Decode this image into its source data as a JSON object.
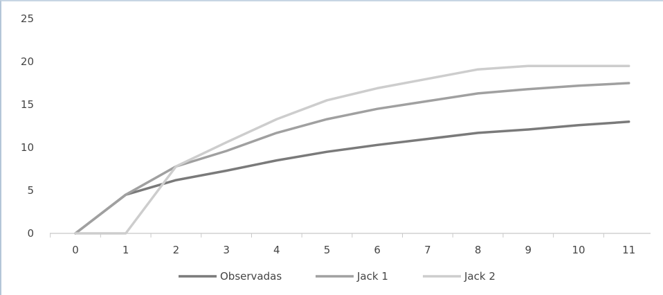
{
  "chart_data": {
    "type": "line",
    "title": "",
    "xlabel": "",
    "ylabel": "",
    "x": [
      0,
      1,
      2,
      3,
      4,
      5,
      6,
      7,
      8,
      9,
      10,
      11
    ],
    "x_tick_labels": [
      "0",
      "1",
      "2",
      "3",
      "4",
      "5",
      "6",
      "7",
      "8",
      "9",
      "10",
      "11"
    ],
    "ylim": [
      0,
      25
    ],
    "y_ticks": [
      0,
      5,
      10,
      15,
      20,
      25
    ],
    "y_tick_labels": [
      "0",
      "5",
      "10",
      "15",
      "20",
      "25"
    ],
    "grid": false,
    "legend_position": "bottom",
    "series": [
      {
        "name": "Observadas",
        "color": "#7a7a7a",
        "values": [
          0,
          4.5,
          6.2,
          7.3,
          8.5,
          9.5,
          10.3,
          11.0,
          11.7,
          12.1,
          12.6,
          13.0
        ]
      },
      {
        "name": "Jack 1",
        "color": "#a0a0a0",
        "values": [
          0,
          4.5,
          7.8,
          9.6,
          11.7,
          13.3,
          14.5,
          15.4,
          16.3,
          16.8,
          17.2,
          17.5
        ]
      },
      {
        "name": "Jack 2",
        "color": "#cdcdcd",
        "values": [
          0,
          0,
          7.8,
          10.6,
          13.3,
          15.5,
          16.9,
          18.0,
          19.1,
          19.5,
          19.5,
          19.5
        ]
      }
    ]
  }
}
